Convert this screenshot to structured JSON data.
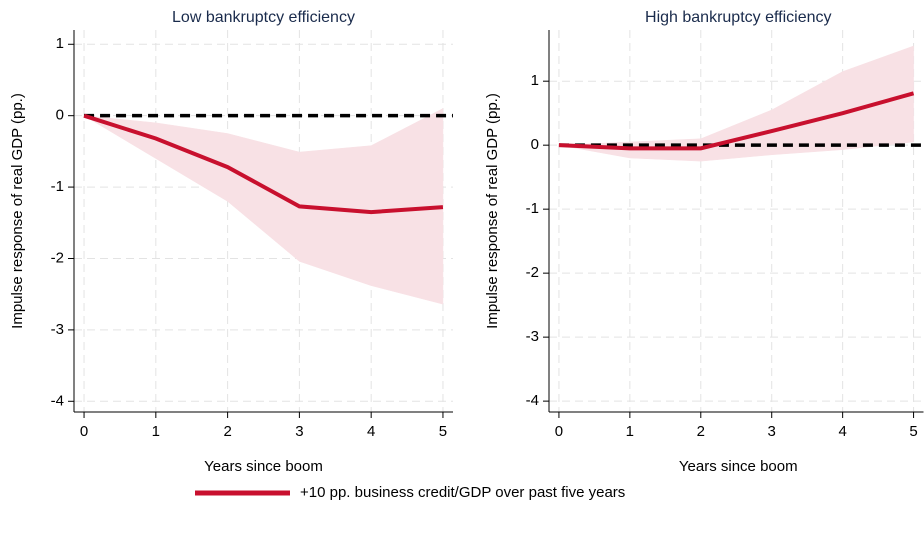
{
  "chart_data": [
    {
      "type": "line",
      "title": "Low bankruptcy efficiency",
      "xlabel": "Years since boom",
      "ylabel": "Impulse response of real GDP (pp.)",
      "x": [
        0,
        1,
        2,
        3,
        4,
        5
      ],
      "series": [
        {
          "name": "+10 pp. business credit/GDP over past five years",
          "color": "#c8102e",
          "values": [
            0,
            -0.32,
            -0.72,
            -1.27,
            -1.35,
            -1.28
          ],
          "upper": [
            0,
            -0.1,
            -0.25,
            -0.51,
            -0.42,
            0.1
          ],
          "lower": [
            0,
            -0.6,
            -1.2,
            -2.04,
            -2.38,
            -2.64
          ],
          "band_color": "#f8e1e5"
        }
      ],
      "hline": 0,
      "xlim": [
        -0.14,
        5.14
      ],
      "ylim": [
        -4.15,
        1.2
      ],
      "xticks": [
        0,
        1,
        2,
        3,
        4,
        5
      ],
      "yticks": [
        -4,
        -3,
        -2,
        -1,
        0,
        1
      ],
      "grid": true
    },
    {
      "type": "line",
      "title": "High bankruptcy efficiency",
      "xlabel": "Years since boom",
      "ylabel": "Impulse response of real GDP (pp.)",
      "x": [
        0,
        1,
        2,
        3,
        4,
        5
      ],
      "series": [
        {
          "color": "#c8102e",
          "values": [
            0,
            -0.05,
            -0.05,
            0.22,
            0.5,
            0.81
          ],
          "upper": [
            0,
            0.05,
            0.1,
            0.55,
            1.15,
            1.55
          ],
          "lower": [
            0,
            -0.2,
            -0.25,
            -0.15,
            -0.07,
            0.05
          ],
          "band_color": "#f8e1e5"
        }
      ],
      "hline": 0,
      "xlim": [
        -0.14,
        5.14
      ],
      "ylim": [
        -4.17,
        1.8
      ],
      "xticks": [
        0,
        1,
        2,
        3,
        4,
        5
      ],
      "yticks": [
        -4,
        -3,
        -2,
        -1,
        0,
        1
      ],
      "grid": true
    }
  ]
}
